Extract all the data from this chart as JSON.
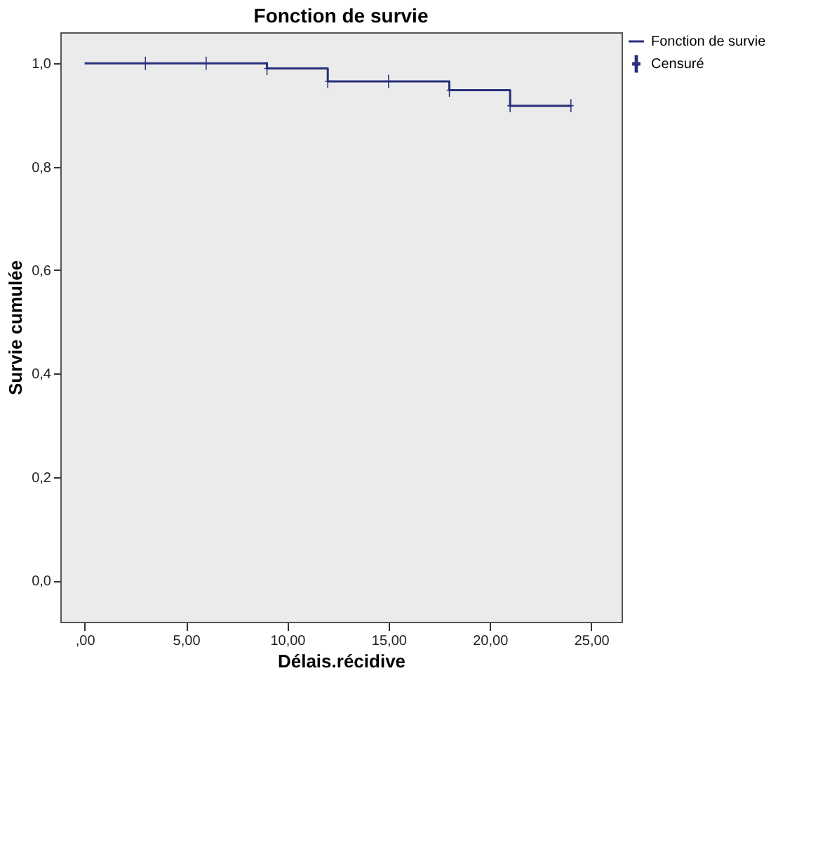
{
  "chart_data": {
    "type": "step",
    "title": "Fonction de survie",
    "xlabel": "Délais.récidive",
    "ylabel": "Survie cumulée",
    "series": [
      {
        "name": "Fonction de survie",
        "color": "#27307a",
        "x": [
          0,
          9,
          12,
          18,
          21,
          24
        ],
        "values": [
          1.0,
          0.99,
          0.965,
          0.948,
          0.918,
          0.918
        ],
        "line_style": "solid"
      },
      {
        "name": "Censuré",
        "type": "scatter",
        "color": "#27307a",
        "x": [
          3,
          6,
          9,
          12,
          15,
          18,
          21,
          24
        ],
        "values": [
          1.0,
          1.0,
          0.99,
          0.965,
          0.965,
          0.948,
          0.918,
          0.918
        ],
        "marker": "cross"
      }
    ],
    "xlim": [
      -1.2,
      26.5
    ],
    "ylim": [
      -0.08,
      1.06
    ],
    "xticks": [
      {
        "value": 0,
        "label": ",00"
      },
      {
        "value": 5,
        "label": "5,00"
      },
      {
        "value": 10,
        "label": "10,00"
      },
      {
        "value": 15,
        "label": "15,00"
      },
      {
        "value": 20,
        "label": "20,00"
      },
      {
        "value": 25,
        "label": "25,00"
      }
    ],
    "yticks": [
      {
        "value": 0,
        "label": "0,0"
      },
      {
        "value": 0.2,
        "label": "0,2"
      },
      {
        "value": 0.4,
        "label": "0,4"
      },
      {
        "value": 0.6,
        "label": "0,6"
      },
      {
        "value": 0.8,
        "label": "0,8"
      },
      {
        "value": 1.0,
        "label": "1,0"
      }
    ],
    "grid": false,
    "legend": "top right"
  }
}
